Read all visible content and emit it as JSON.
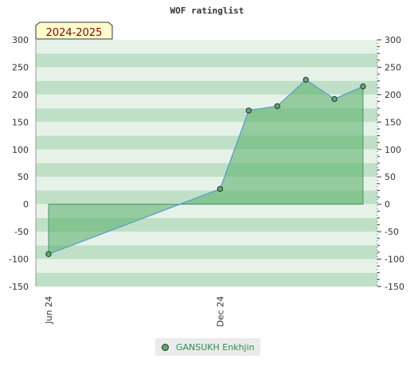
{
  "chart_data": {
    "type": "area",
    "title": "WOF ratinglist",
    "season_label": "2024-2025",
    "y_ticks": [
      300,
      250,
      200,
      150,
      100,
      50,
      0,
      -50,
      -100,
      -150
    ],
    "ylim": [
      -150,
      300
    ],
    "x_ticks": [
      "Jun 24",
      "Dec 24"
    ],
    "series": [
      {
        "name": "GANSUKH Enkhjin",
        "x": [
          "2024-06",
          "2024-12",
          "2025-01",
          "2025-02",
          "2025-03",
          "2025-04",
          "2025-05"
        ],
        "values": [
          -91,
          28,
          171,
          179,
          227,
          192,
          215
        ]
      }
    ],
    "grid": true,
    "legend": "bottom-center",
    "colors": {
      "line": "#5b9bd5",
      "area_fill": "#5fb36e",
      "marker": "#5fa96e",
      "band_dark": "#bfe0c6",
      "band_light": "#e6f2e8",
      "season_bg": "#ffffcc"
    }
  }
}
